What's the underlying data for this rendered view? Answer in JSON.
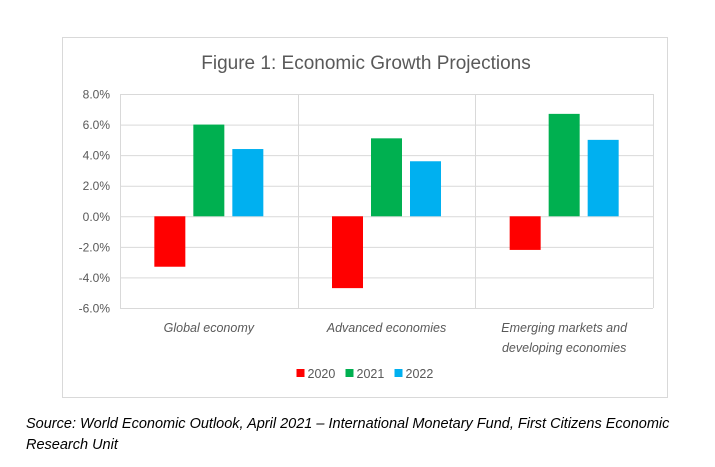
{
  "chart_data": {
    "type": "bar",
    "title": "Figure 1: Economic Growth Projections",
    "xlabel": "",
    "ylabel": "",
    "categories": [
      [
        "Global economy"
      ],
      [
        "Advanced economies"
      ],
      [
        "Emerging markets and",
        "developing economies"
      ]
    ],
    "series": [
      {
        "name": "2020",
        "color": "#ff0000",
        "values": [
          -3.3,
          -4.7,
          -2.2
        ]
      },
      {
        "name": "2021",
        "color": "#00b050",
        "values": [
          6.0,
          5.1,
          6.7
        ]
      },
      {
        "name": "2022",
        "color": "#00b0f0",
        "values": [
          4.4,
          3.6,
          5.0
        ]
      }
    ],
    "ylim": [
      -6.0,
      8.0
    ],
    "yticks": [
      8.0,
      6.0,
      4.0,
      2.0,
      0.0,
      -2.0,
      -4.0,
      -6.0
    ],
    "ytick_labels": [
      "8.0%",
      "6.0%",
      "4.0%",
      "2.0%",
      "0.0%",
      "-2.0%",
      "-4.0%",
      "-6.0%"
    ],
    "grid": true,
    "legend_position": "bottom"
  },
  "source_note": "Source: World Economic Outlook, April 2021 – International Monetary Fund, First Citizens Economic Research Unit"
}
